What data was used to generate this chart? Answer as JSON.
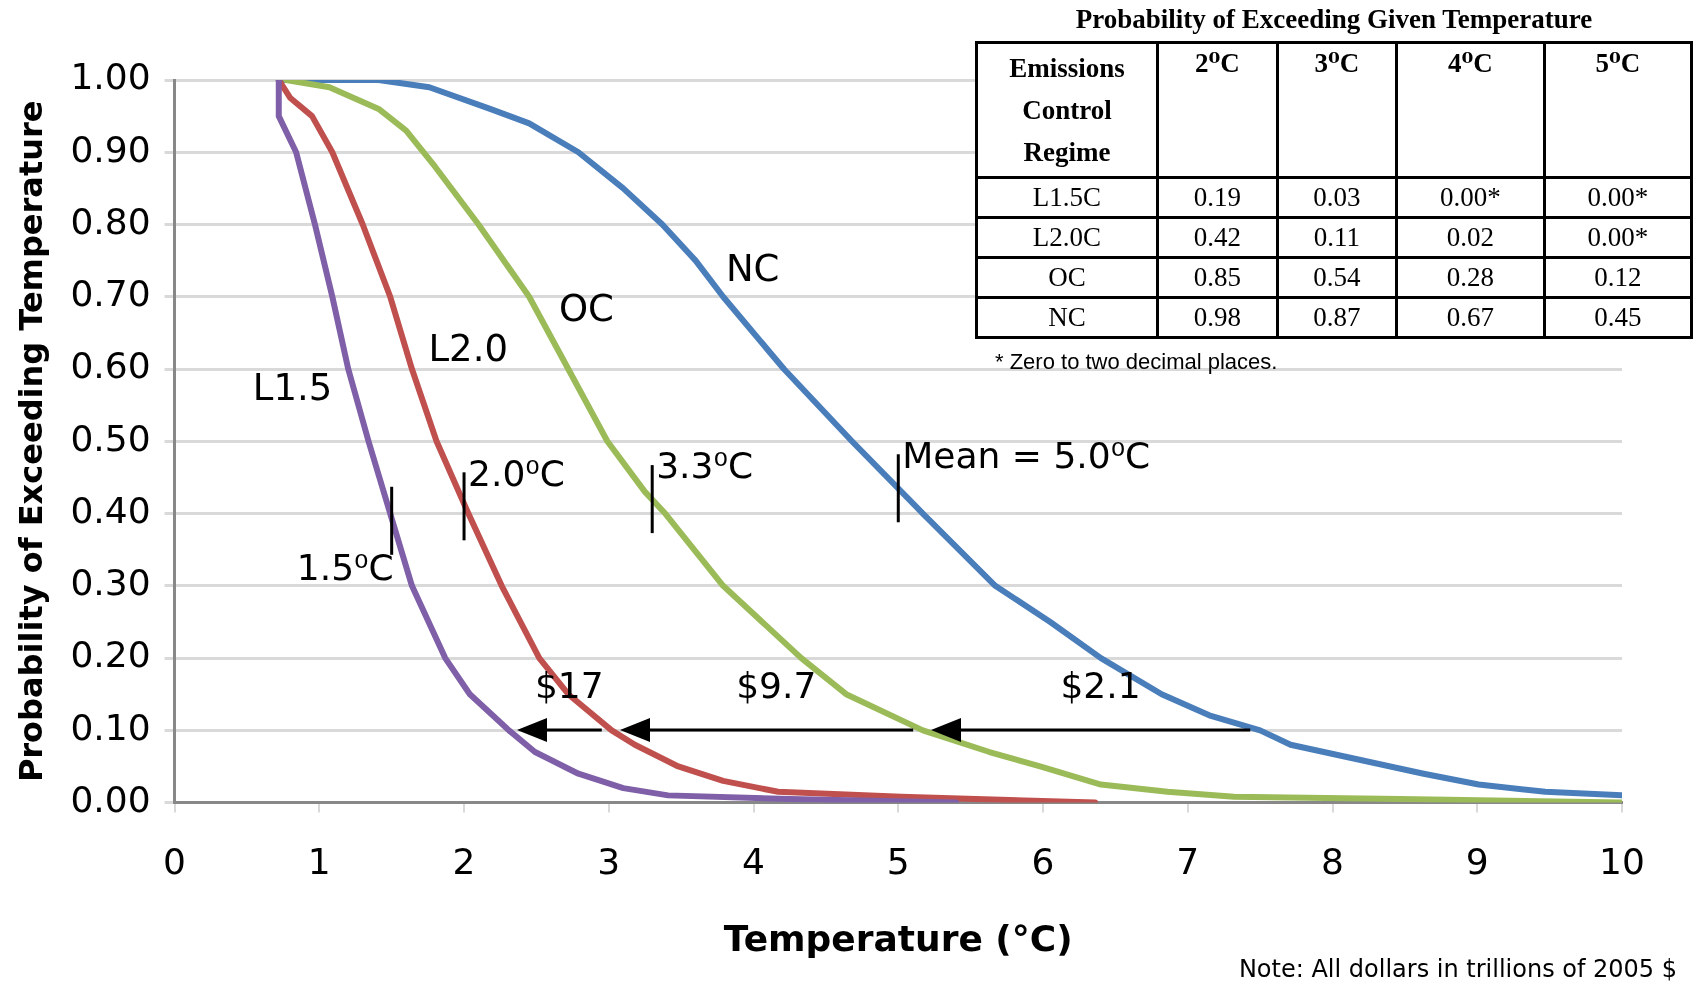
{
  "chart_data": [
    {
      "type": "line",
      "xlabel": "Temperature (°C)",
      "ylabel": "Probability of Exceeding Temperature",
      "xlim": [
        0,
        10
      ],
      "xticks": [
        0,
        1,
        2,
        3,
        4,
        5,
        6,
        7,
        8,
        9,
        10
      ],
      "ylim": [
        0,
        1
      ],
      "yticks": [
        {
          "value": 0,
          "label": "0.00"
        },
        {
          "value": 0.1,
          "label": "0.10"
        },
        {
          "value": 0.2,
          "label": "0.20"
        },
        {
          "value": 0.3,
          "label": "0.30"
        },
        {
          "value": 0.4,
          "label": "0.40"
        },
        {
          "value": 0.5,
          "label": "0.50"
        },
        {
          "value": 0.6,
          "label": "0.60"
        },
        {
          "value": 0.7,
          "label": "0.70"
        },
        {
          "value": 0.8,
          "label": "0.80"
        },
        {
          "value": 0.9,
          "label": "0.90"
        },
        {
          "value": 1,
          "label": "1.00"
        }
      ],
      "grid": "y",
      "legend": false,
      "marker": "none",
      "line_style": "solid",
      "series": [
        {
          "name": "L1.5",
          "color": "#7f60a8",
          "x": [
            0.72,
            0.72,
            0.84,
            0.97,
            1.09,
            1.2,
            1.34,
            1.49,
            1.64,
            1.87,
            2.04,
            2.31,
            2.49,
            2.79,
            3.1,
            3.41,
            4.25,
            5.4
          ],
          "values": [
            1,
            0.95,
            0.9,
            0.8,
            0.7,
            0.6,
            0.5,
            0.4,
            0.3,
            0.2,
            0.15,
            0.1,
            0.07,
            0.04,
            0.02,
            0.01,
            0.005,
            0
          ]
        },
        {
          "name": "L2.0",
          "color": "#c0504d",
          "x": [
            0.72,
            0.8,
            0.95,
            1.09,
            1.3,
            1.49,
            1.64,
            1.81,
            2.03,
            2.26,
            2.52,
            2.72,
            3.02,
            3.18,
            3.48,
            3.79,
            4.17,
            5.02,
            6.36
          ],
          "values": [
            1,
            0.975,
            0.95,
            0.9,
            0.8,
            0.7,
            0.6,
            0.5,
            0.4,
            0.3,
            0.2,
            0.15,
            0.1,
            0.08,
            0.05,
            0.03,
            0.015,
            0.008,
            0
          ]
        },
        {
          "name": "OC",
          "color": "#9bbb59",
          "x": [
            0.77,
            1.07,
            1.41,
            1.6,
            1.8,
            2.1,
            2.45,
            2.72,
            2.99,
            3.25,
            3.39,
            3.79,
            4.33,
            4.64,
            5.17,
            5.63,
            5.98,
            6.4,
            6.86,
            7.32,
            8.47,
            10
          ],
          "values": [
            1,
            0.99,
            0.96,
            0.93,
            0.88,
            0.8,
            0.7,
            0.6,
            0.5,
            0.43,
            0.4,
            0.3,
            0.2,
            0.15,
            0.1,
            0.07,
            0.05,
            0.025,
            0.015,
            0.008,
            0.005,
            0
          ]
        },
        {
          "name": "NC",
          "color": "#4a7ebb",
          "x": [
            0.72,
            1.41,
            1.76,
            2.18,
            2.45,
            2.79,
            3.1,
            3.37,
            3.6,
            3.79,
            4.21,
            4.68,
            5.17,
            5.67,
            6.05,
            6.4,
            6.82,
            7.16,
            7.5,
            7.71,
            8.17,
            8.63,
            9.01,
            9.47,
            10
          ],
          "values": [
            1,
            1,
            0.99,
            0.96,
            0.94,
            0.9,
            0.85,
            0.8,
            0.75,
            0.7,
            0.6,
            0.5,
            0.4,
            0.3,
            0.25,
            0.2,
            0.15,
            0.12,
            0.1,
            0.08,
            0.06,
            0.04,
            0.025,
            0.015,
            0.01
          ]
        }
      ],
      "annotations": [
        {
          "text": "1.5⁰C",
          "x": 1.5,
          "y": 0.39
        },
        {
          "text": "2.0⁰C",
          "x": 2.0,
          "y": 0.41
        },
        {
          "text": "3.3⁰C",
          "x": 3.3,
          "y": 0.42
        },
        {
          "text": "Mean = 5.0⁰C",
          "x": 5.0,
          "y": 0.435
        },
        "$17",
        "$9.7",
        "$2.1",
        "Note: All dollars in trillions of 2005 $"
      ]
    },
    {
      "type": "heatmap",
      "title": "Probability of Exceeding Given Temperature",
      "ylabel": "Emissions Control Regime",
      "categories": [
        "2⁰C",
        "3⁰C",
        "4⁰C",
        "5⁰C"
      ],
      "y_categories": [
        "L1.5C",
        "L2.0C",
        "OC",
        "NC"
      ],
      "cells": [
        [
          0.19,
          0.03,
          0,
          0
        ],
        [
          0.42,
          0.11,
          0.02,
          0
        ],
        [
          0.85,
          0.54,
          0.28,
          0.12
        ],
        [
          0.98,
          0.87,
          0.67,
          0.45
        ]
      ],
      "data_labels": true,
      "cell_labels": [
        [
          "0.19",
          "0.03",
          "0.00*",
          "0.00*"
        ],
        [
          "0.42",
          "0.11",
          "0.02",
          "0.00*"
        ],
        [
          "0.85",
          "0.54",
          "0.28",
          "0.12"
        ],
        [
          "0.98",
          "0.87",
          "0.67",
          "0.45"
        ]
      ],
      "annotations": [
        "* Zero to two decimal places."
      ]
    }
  ]
}
